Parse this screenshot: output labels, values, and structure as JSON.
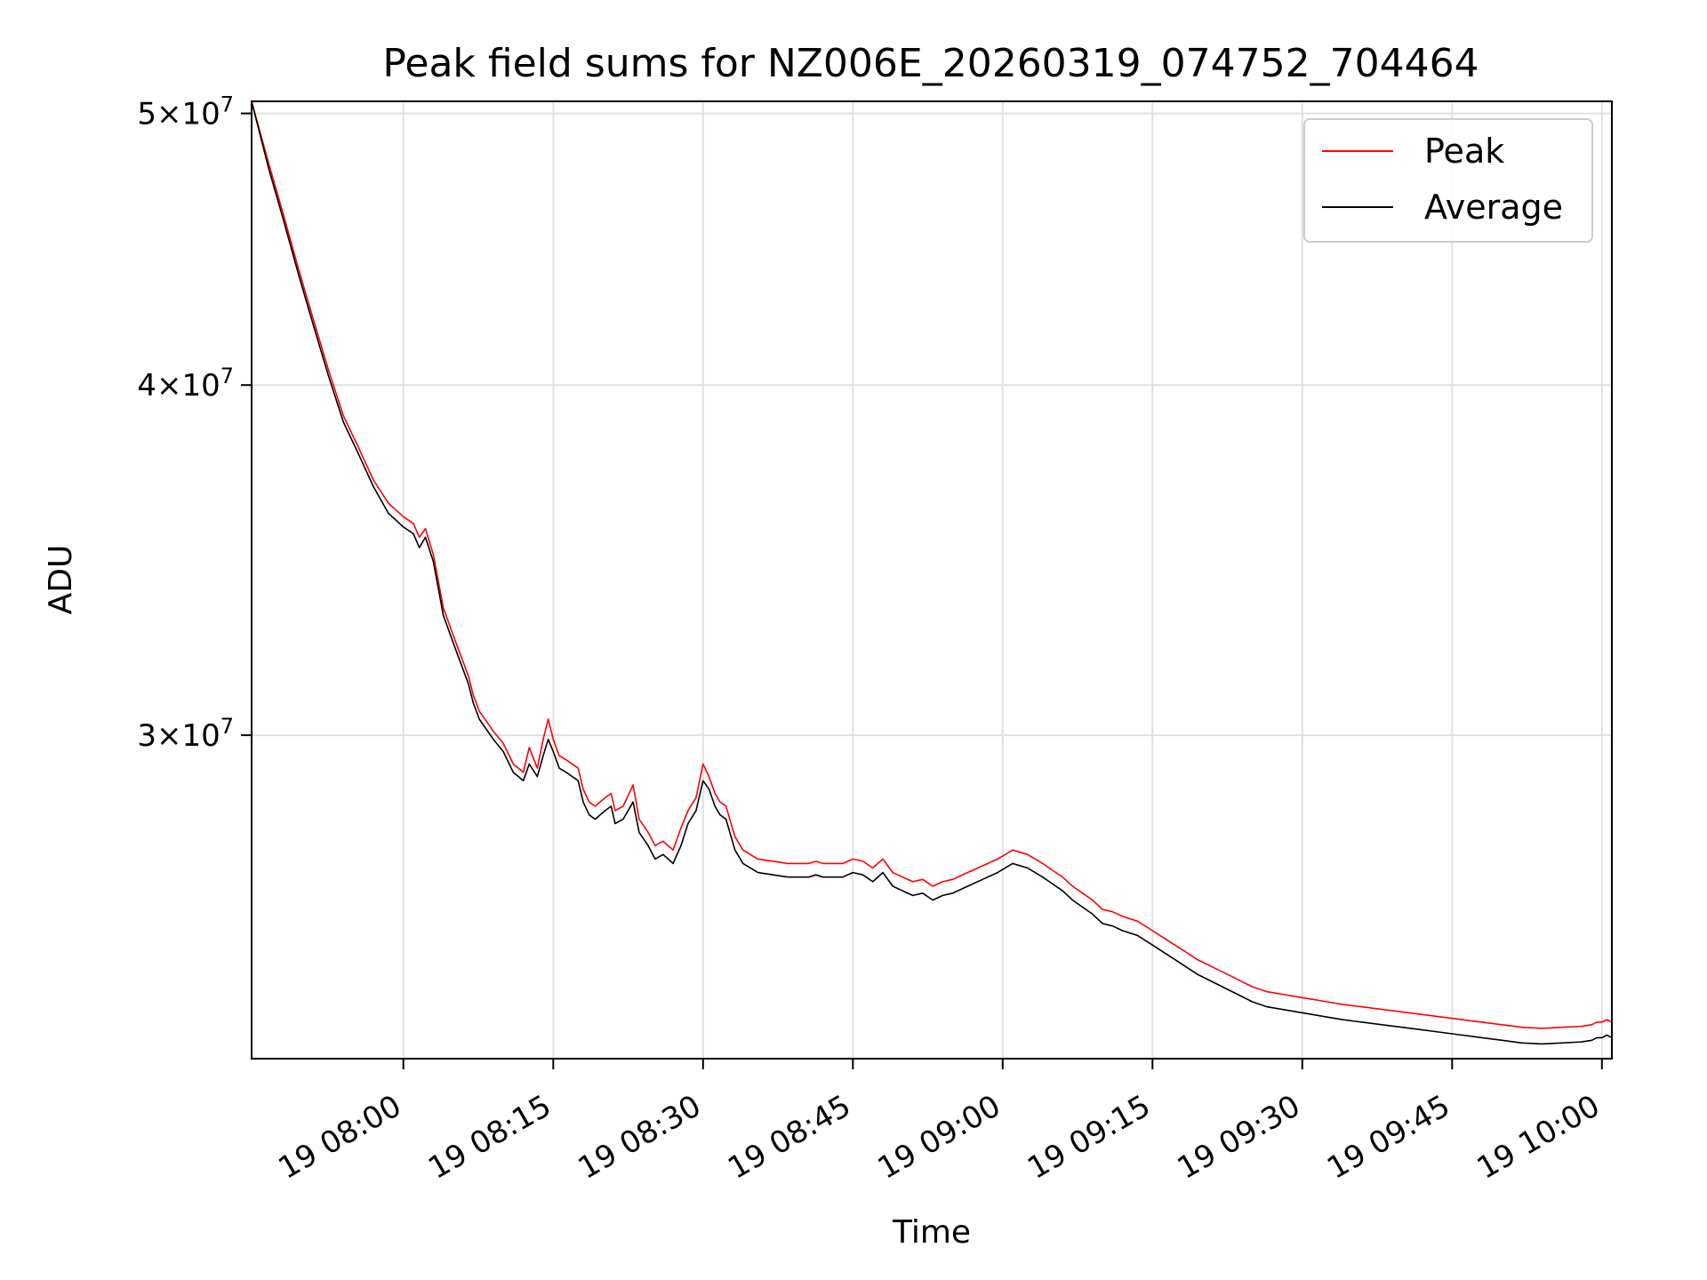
{
  "chart_data": {
    "type": "line",
    "title": "Peak field sums for NZ006E_20260319_074752_704464",
    "xlabel": "Time",
    "ylabel": "ADU",
    "yscale": "log",
    "ylim": [
      23000000,
      50500000
    ],
    "xlim_minutes": [
      -15.2,
      121.0
    ],
    "x_unit": "minutes since 19 08:00",
    "x_ticks": [
      {
        "value": 0,
        "label": "19 08:00"
      },
      {
        "value": 15,
        "label": "19 08:15"
      },
      {
        "value": 30,
        "label": "19 08:30"
      },
      {
        "value": 45,
        "label": "19 08:45"
      },
      {
        "value": 60,
        "label": "19 09:00"
      },
      {
        "value": 75,
        "label": "19 09:15"
      },
      {
        "value": 90,
        "label": "19 09:30"
      },
      {
        "value": 105,
        "label": "19 09:45"
      },
      {
        "value": 120,
        "label": "19 10:00"
      }
    ],
    "y_ticks": [
      {
        "value": 30000000,
        "mantissa": "3",
        "exponent": "7"
      },
      {
        "value": 40000000,
        "mantissa": "4",
        "exponent": "7"
      },
      {
        "value": 50000000,
        "mantissa": "5",
        "exponent": "7"
      }
    ],
    "grid": true,
    "legend_position": "top-right",
    "series": [
      {
        "name": "Peak",
        "color": "#ff0000",
        "points": [
          [
            -15.2,
            50500000
          ],
          [
            -13.5,
            48000000
          ],
          [
            -12.0,
            46000000
          ],
          [
            -10.5,
            44000000
          ],
          [
            -9.0,
            42200000
          ],
          [
            -7.5,
            40500000
          ],
          [
            -6.0,
            39000000
          ],
          [
            -4.5,
            38000000
          ],
          [
            -3.0,
            37000000
          ],
          [
            -1.5,
            36300000
          ],
          [
            0.0,
            35900000
          ],
          [
            1.0,
            35700000
          ],
          [
            1.6,
            35300000
          ],
          [
            2.2,
            35550000
          ],
          [
            3.0,
            34800000
          ],
          [
            4.0,
            33300000
          ],
          [
            5.5,
            32200000
          ],
          [
            6.5,
            31500000
          ],
          [
            7.0,
            31000000
          ],
          [
            7.6,
            30600000
          ],
          [
            9.0,
            30100000
          ],
          [
            10.0,
            29800000
          ],
          [
            11.0,
            29300000
          ],
          [
            12.0,
            29100000
          ],
          [
            12.6,
            29700000
          ],
          [
            13.4,
            29200000
          ],
          [
            14.0,
            29900000
          ],
          [
            14.5,
            30400000
          ],
          [
            15.0,
            29900000
          ],
          [
            15.6,
            29500000
          ],
          [
            16.3,
            29400000
          ],
          [
            17.5,
            29200000
          ],
          [
            18.0,
            28700000
          ],
          [
            18.6,
            28400000
          ],
          [
            19.2,
            28300000
          ],
          [
            20.2,
            28500000
          ],
          [
            20.8,
            28600000
          ],
          [
            21.2,
            28200000
          ],
          [
            22.0,
            28300000
          ],
          [
            23.0,
            28800000
          ],
          [
            23.6,
            28000000
          ],
          [
            24.5,
            27700000
          ],
          [
            25.2,
            27400000
          ],
          [
            26.0,
            27500000
          ],
          [
            27.0,
            27300000
          ],
          [
            27.8,
            27800000
          ],
          [
            28.5,
            28200000
          ],
          [
            29.3,
            28500000
          ],
          [
            30.0,
            29300000
          ],
          [
            30.6,
            29000000
          ],
          [
            31.2,
            28600000
          ],
          [
            31.7,
            28400000
          ],
          [
            32.3,
            28300000
          ],
          [
            33.2,
            27600000
          ],
          [
            34.0,
            27300000
          ],
          [
            35.5,
            27100000
          ],
          [
            37.0,
            27050000
          ],
          [
            38.5,
            27000000
          ],
          [
            40.0,
            27000000
          ],
          [
            40.6,
            27000000
          ],
          [
            41.3,
            27050000
          ],
          [
            42.0,
            27000000
          ],
          [
            43.0,
            27000000
          ],
          [
            44.0,
            27000000
          ],
          [
            45.0,
            27100000
          ],
          [
            46.0,
            27050000
          ],
          [
            47.0,
            26900000
          ],
          [
            48.0,
            27100000
          ],
          [
            49.0,
            26800000
          ],
          [
            50.0,
            26700000
          ],
          [
            51.0,
            26600000
          ],
          [
            52.0,
            26650000
          ],
          [
            53.0,
            26500000
          ],
          [
            54.0,
            26600000
          ],
          [
            55.0,
            26650000
          ],
          [
            56.5,
            26800000
          ],
          [
            58.0,
            26950000
          ],
          [
            59.5,
            27100000
          ],
          [
            61.0,
            27300000
          ],
          [
            62.5,
            27200000
          ],
          [
            64.0,
            27000000
          ],
          [
            65.0,
            26850000
          ],
          [
            66.0,
            26700000
          ],
          [
            67.0,
            26500000
          ],
          [
            68.0,
            26350000
          ],
          [
            69.0,
            26200000
          ],
          [
            70.0,
            26000000
          ],
          [
            71.0,
            25950000
          ],
          [
            72.0,
            25850000
          ],
          [
            73.5,
            25750000
          ],
          [
            75.0,
            25550000
          ],
          [
            76.5,
            25350000
          ],
          [
            78.0,
            25150000
          ],
          [
            79.5,
            24950000
          ],
          [
            81.0,
            24800000
          ],
          [
            82.0,
            24700000
          ],
          [
            83.5,
            24550000
          ],
          [
            85.0,
            24400000
          ],
          [
            86.5,
            24300000
          ],
          [
            88.0,
            24250000
          ],
          [
            89.5,
            24200000
          ],
          [
            91.0,
            24150000
          ],
          [
            92.5,
            24100000
          ],
          [
            94.0,
            24050000
          ],
          [
            96.0,
            24000000
          ],
          [
            98.0,
            23950000
          ],
          [
            100.0,
            23900000
          ],
          [
            102.0,
            23850000
          ],
          [
            104.0,
            23800000
          ],
          [
            106.0,
            23750000
          ],
          [
            108.0,
            23700000
          ],
          [
            110.0,
            23650000
          ],
          [
            112.0,
            23600000
          ],
          [
            114.0,
            23580000
          ],
          [
            116.0,
            23600000
          ],
          [
            118.0,
            23620000
          ],
          [
            119.0,
            23650000
          ],
          [
            119.5,
            23700000
          ],
          [
            120.0,
            23700000
          ],
          [
            120.5,
            23750000
          ],
          [
            121.0,
            23700000
          ]
        ]
      },
      {
        "name": "Average",
        "color": "#000000",
        "points": [
          [
            -15.2,
            50500000
          ],
          [
            -13.5,
            47800000
          ],
          [
            -12.0,
            45800000
          ],
          [
            -10.5,
            43800000
          ],
          [
            -9.0,
            42000000
          ],
          [
            -7.5,
            40300000
          ],
          [
            -6.0,
            38800000
          ],
          [
            -4.5,
            37800000
          ],
          [
            -3.0,
            36800000
          ],
          [
            -1.5,
            36000000
          ],
          [
            0.0,
            35600000
          ],
          [
            1.0,
            35400000
          ],
          [
            1.6,
            35000000
          ],
          [
            2.2,
            35300000
          ],
          [
            3.0,
            34600000
          ],
          [
            4.0,
            33100000
          ],
          [
            5.5,
            32000000
          ],
          [
            6.5,
            31300000
          ],
          [
            7.0,
            30800000
          ],
          [
            7.6,
            30400000
          ],
          [
            9.0,
            29900000
          ],
          [
            10.0,
            29600000
          ],
          [
            11.0,
            29100000
          ],
          [
            12.0,
            28900000
          ],
          [
            12.6,
            29300000
          ],
          [
            13.4,
            29000000
          ],
          [
            14.0,
            29500000
          ],
          [
            14.5,
            29900000
          ],
          [
            15.0,
            29600000
          ],
          [
            15.6,
            29200000
          ],
          [
            16.3,
            29100000
          ],
          [
            17.5,
            28900000
          ],
          [
            18.0,
            28400000
          ],
          [
            18.6,
            28100000
          ],
          [
            19.2,
            28000000
          ],
          [
            20.2,
            28200000
          ],
          [
            20.8,
            28300000
          ],
          [
            21.2,
            27900000
          ],
          [
            22.0,
            28000000
          ],
          [
            23.0,
            28400000
          ],
          [
            23.6,
            27700000
          ],
          [
            24.5,
            27400000
          ],
          [
            25.2,
            27100000
          ],
          [
            26.0,
            27200000
          ],
          [
            27.0,
            27000000
          ],
          [
            27.8,
            27400000
          ],
          [
            28.5,
            27900000
          ],
          [
            29.3,
            28200000
          ],
          [
            30.0,
            28900000
          ],
          [
            30.6,
            28700000
          ],
          [
            31.2,
            28300000
          ],
          [
            31.7,
            28100000
          ],
          [
            32.3,
            28000000
          ],
          [
            33.2,
            27300000
          ],
          [
            34.0,
            27000000
          ],
          [
            35.5,
            26800000
          ],
          [
            37.0,
            26750000
          ],
          [
            38.5,
            26700000
          ],
          [
            40.0,
            26700000
          ],
          [
            40.6,
            26700000
          ],
          [
            41.3,
            26750000
          ],
          [
            42.0,
            26700000
          ],
          [
            43.0,
            26700000
          ],
          [
            44.0,
            26700000
          ],
          [
            45.0,
            26800000
          ],
          [
            46.0,
            26750000
          ],
          [
            47.0,
            26600000
          ],
          [
            48.0,
            26800000
          ],
          [
            49.0,
            26500000
          ],
          [
            50.0,
            26400000
          ],
          [
            51.0,
            26300000
          ],
          [
            52.0,
            26350000
          ],
          [
            53.0,
            26200000
          ],
          [
            54.0,
            26300000
          ],
          [
            55.0,
            26350000
          ],
          [
            56.5,
            26500000
          ],
          [
            58.0,
            26650000
          ],
          [
            59.5,
            26800000
          ],
          [
            61.0,
            27000000
          ],
          [
            62.5,
            26900000
          ],
          [
            64.0,
            26700000
          ],
          [
            65.0,
            26550000
          ],
          [
            66.0,
            26400000
          ],
          [
            67.0,
            26200000
          ],
          [
            68.0,
            26050000
          ],
          [
            69.0,
            25900000
          ],
          [
            70.0,
            25700000
          ],
          [
            71.0,
            25650000
          ],
          [
            72.0,
            25550000
          ],
          [
            73.5,
            25450000
          ],
          [
            75.0,
            25250000
          ],
          [
            76.5,
            25050000
          ],
          [
            78.0,
            24850000
          ],
          [
            79.5,
            24650000
          ],
          [
            81.0,
            24500000
          ],
          [
            82.0,
            24400000
          ],
          [
            83.5,
            24250000
          ],
          [
            85.0,
            24100000
          ],
          [
            86.5,
            24000000
          ],
          [
            88.0,
            23950000
          ],
          [
            89.5,
            23900000
          ],
          [
            91.0,
            23850000
          ],
          [
            92.5,
            23800000
          ],
          [
            94.0,
            23750000
          ],
          [
            96.0,
            23700000
          ],
          [
            98.0,
            23650000
          ],
          [
            100.0,
            23600000
          ],
          [
            102.0,
            23550000
          ],
          [
            104.0,
            23500000
          ],
          [
            106.0,
            23450000
          ],
          [
            108.0,
            23400000
          ],
          [
            110.0,
            23350000
          ],
          [
            112.0,
            23300000
          ],
          [
            114.0,
            23280000
          ],
          [
            116.0,
            23300000
          ],
          [
            118.0,
            23320000
          ],
          [
            119.0,
            23350000
          ],
          [
            119.5,
            23400000
          ],
          [
            120.0,
            23400000
          ],
          [
            120.5,
            23450000
          ],
          [
            121.0,
            23400000
          ]
        ]
      }
    ]
  }
}
